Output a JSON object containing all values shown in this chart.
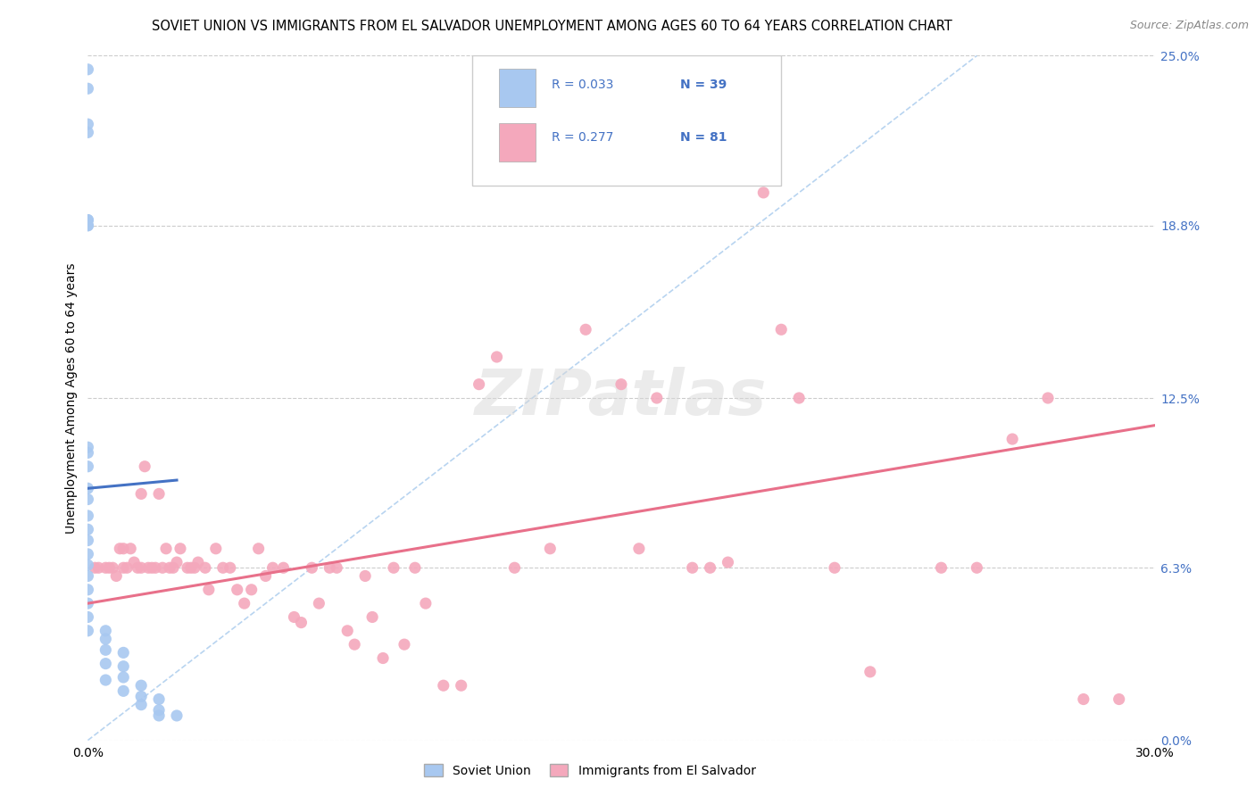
{
  "title": "SOVIET UNION VS IMMIGRANTS FROM EL SALVADOR UNEMPLOYMENT AMONG AGES 60 TO 64 YEARS CORRELATION CHART",
  "source": "Source: ZipAtlas.com",
  "ylabel_label": "Unemployment Among Ages 60 to 64 years",
  "legend_R1": "R = 0.033",
  "legend_N1": "N = 39",
  "legend_R2": "R = 0.277",
  "legend_N2": "N = 81",
  "label1": "Soviet Union",
  "label2": "Immigrants from El Salvador",
  "soviet_scatter_x": [
    0.0,
    0.0,
    0.0,
    0.0,
    0.0,
    0.0,
    0.0,
    0.0,
    0.0,
    0.0,
    0.0,
    0.0,
    0.0,
    0.0,
    0.0,
    0.0,
    0.0,
    0.0,
    0.0,
    0.0,
    0.0,
    0.0,
    0.0,
    0.005,
    0.005,
    0.005,
    0.005,
    0.005,
    0.01,
    0.01,
    0.01,
    0.01,
    0.015,
    0.015,
    0.015,
    0.02,
    0.02,
    0.02,
    0.025
  ],
  "soviet_scatter_y": [
    0.245,
    0.238,
    0.225,
    0.222,
    0.19,
    0.188,
    0.19,
    0.188,
    0.107,
    0.105,
    0.1,
    0.092,
    0.088,
    0.082,
    0.077,
    0.073,
    0.068,
    0.064,
    0.06,
    0.055,
    0.05,
    0.045,
    0.04,
    0.04,
    0.037,
    0.033,
    0.028,
    0.022,
    0.032,
    0.027,
    0.023,
    0.018,
    0.02,
    0.016,
    0.013,
    0.015,
    0.011,
    0.009,
    0.009
  ],
  "salvador_scatter_x": [
    0.002,
    0.003,
    0.005,
    0.006,
    0.007,
    0.008,
    0.009,
    0.01,
    0.01,
    0.011,
    0.012,
    0.013,
    0.014,
    0.015,
    0.015,
    0.016,
    0.017,
    0.018,
    0.019,
    0.02,
    0.021,
    0.022,
    0.023,
    0.024,
    0.025,
    0.026,
    0.028,
    0.029,
    0.03,
    0.031,
    0.033,
    0.034,
    0.036,
    0.038,
    0.04,
    0.042,
    0.044,
    0.046,
    0.048,
    0.05,
    0.052,
    0.055,
    0.058,
    0.06,
    0.063,
    0.065,
    0.068,
    0.07,
    0.073,
    0.075,
    0.078,
    0.08,
    0.083,
    0.086,
    0.089,
    0.092,
    0.095,
    0.1,
    0.105,
    0.11,
    0.115,
    0.12,
    0.13,
    0.14,
    0.15,
    0.155,
    0.16,
    0.17,
    0.175,
    0.18,
    0.19,
    0.195,
    0.2,
    0.21,
    0.22,
    0.24,
    0.25,
    0.26,
    0.27,
    0.28,
    0.29
  ],
  "salvador_scatter_y": [
    0.063,
    0.063,
    0.063,
    0.063,
    0.063,
    0.06,
    0.07,
    0.063,
    0.07,
    0.063,
    0.07,
    0.065,
    0.063,
    0.063,
    0.09,
    0.1,
    0.063,
    0.063,
    0.063,
    0.09,
    0.063,
    0.07,
    0.063,
    0.063,
    0.065,
    0.07,
    0.063,
    0.063,
    0.063,
    0.065,
    0.063,
    0.055,
    0.07,
    0.063,
    0.063,
    0.055,
    0.05,
    0.055,
    0.07,
    0.06,
    0.063,
    0.063,
    0.045,
    0.043,
    0.063,
    0.05,
    0.063,
    0.063,
    0.04,
    0.035,
    0.06,
    0.045,
    0.03,
    0.063,
    0.035,
    0.063,
    0.05,
    0.02,
    0.02,
    0.13,
    0.14,
    0.063,
    0.07,
    0.15,
    0.13,
    0.07,
    0.125,
    0.063,
    0.063,
    0.065,
    0.2,
    0.15,
    0.125,
    0.063,
    0.025,
    0.063,
    0.063,
    0.11,
    0.125,
    0.015,
    0.015
  ],
  "soviet_line_x": [
    0.0,
    0.025
  ],
  "soviet_line_y": [
    0.092,
    0.095
  ],
  "salvador_line_x": [
    0.0,
    0.3
  ],
  "salvador_line_y": [
    0.05,
    0.115
  ],
  "dashed_line_x": [
    0.0,
    0.25
  ],
  "dashed_line_y": [
    0.0,
    0.25
  ],
  "xlim": [
    0.0,
    0.3
  ],
  "ylim": [
    0.0,
    0.25
  ],
  "yticks": [
    0.0,
    0.063,
    0.125,
    0.188,
    0.25
  ],
  "ytick_labels": [
    "0.0%",
    "6.3%",
    "12.5%",
    "18.8%",
    "25.0%"
  ],
  "xtick_labels": [
    "0.0%",
    "30.0%"
  ],
  "soviet_color": "#a8c8f0",
  "salvador_color": "#f4a8bc",
  "soviet_line_color": "#4472c4",
  "salvador_line_color": "#e8708a",
  "dashed_line_color": "#b8d4f0",
  "background_color": "#ffffff",
  "watermark": "ZIPatlas",
  "title_fontsize": 10.5,
  "source_fontsize": 9,
  "axis_label_fontsize": 10,
  "tick_fontsize": 10,
  "legend_fontsize": 10,
  "right_tick_color": "#4472c4"
}
